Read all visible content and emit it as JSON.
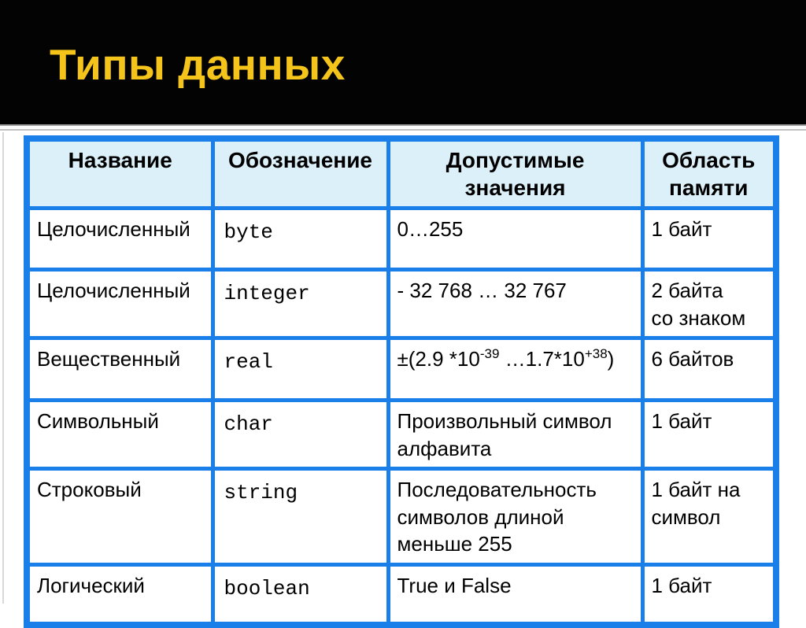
{
  "colors": {
    "table_border": "#1a7fe8",
    "header_bg": "#dcf0f9",
    "title_color": "#f4c41a",
    "banner_bg": "#030303"
  },
  "slide": {
    "title": "Типы данных"
  },
  "table": {
    "headers": [
      "Название",
      "Обозначение",
      "Допустимые\nзначения",
      "Область\nпамяти"
    ],
    "rows": [
      {
        "name": "Целочисленный",
        "notation": "byte",
        "values": "0…255",
        "memory": "1 байт"
      },
      {
        "name": "Целочисленный",
        "notation": "integer",
        "values": "- 32 768 … 32 767",
        "memory": "2 байта\nсо знаком"
      },
      {
        "name": "Вещественный",
        "notation": "real",
        "values": {
          "p1": "±(2.9 *10",
          "sup1": "-39",
          "p2": " …1.7*10",
          "sup2": "+38",
          "p3": ")"
        },
        "memory": "6 байтов"
      },
      {
        "name": "Символьный",
        "notation": "char",
        "values": "Произвольный символ\nалфавита",
        "memory": "1 байт"
      },
      {
        "name": "Строковый",
        "notation": "string",
        "values": "Последовательность\nсимволов длиной\nменьше 255",
        "memory": "1 байт на\nсимвол"
      },
      {
        "name": "Логический",
        "notation": "boolean",
        "values": "True и False",
        "memory": "1 байт"
      }
    ]
  }
}
